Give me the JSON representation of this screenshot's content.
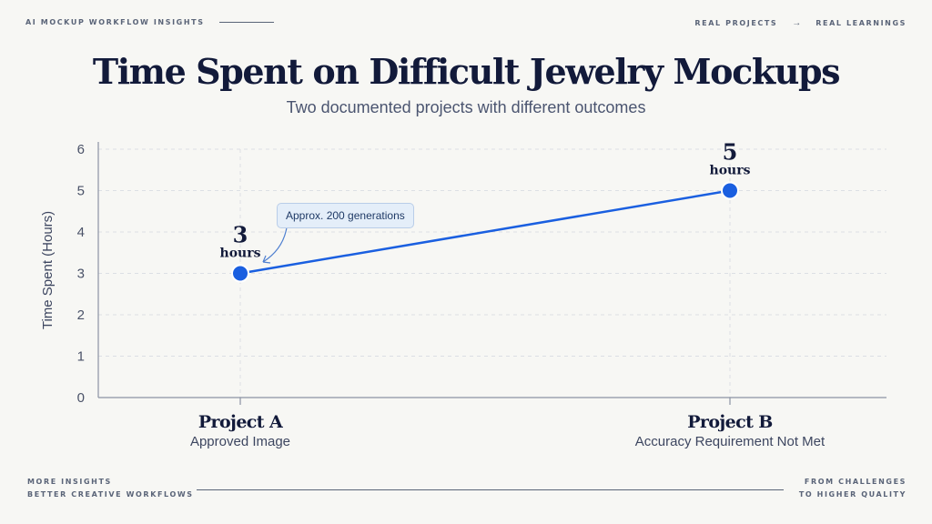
{
  "header": {
    "left_label": "AI MOCKUP WORKFLOW INSIGHTS",
    "right_from": "REAL PROJECTS",
    "right_arrow": "→",
    "right_to": "REAL LEARNINGS"
  },
  "colors": {
    "accent": "#1a5fe0",
    "line": "#1a5fe0",
    "background": "#f7f7f4",
    "title": "#121a3a",
    "callout_bg": "#e4eef9"
  },
  "chart_data": {
    "type": "line",
    "title": "Time Spent on Difficult Jewelry Mockups",
    "subtitle": "Two documented projects with different outcomes",
    "ylabel": "Time Spent (Hours)",
    "xlabel": "",
    "ylim": [
      0,
      6
    ],
    "yticks": [
      "0",
      "1",
      "2",
      "3",
      "4",
      "5",
      "6"
    ],
    "grid": true,
    "categories": [
      {
        "name": "Project A",
        "description": "Approved Image"
      },
      {
        "name": "Project B",
        "description": "Accuracy Requirement Not Met"
      }
    ],
    "values": [
      3,
      5
    ],
    "data_labels": [
      {
        "value": "3",
        "unit": "hours"
      },
      {
        "value": "5",
        "unit": "hours"
      }
    ],
    "annotation": "Approx. 200 generations"
  },
  "footer": {
    "left_line1": "MORE INSIGHTS",
    "left_line2": "BETTER CREATIVE WORKFLOWS",
    "right_line1": "FROM CHALLENGES",
    "right_line2": "TO HIGHER QUALITY"
  }
}
